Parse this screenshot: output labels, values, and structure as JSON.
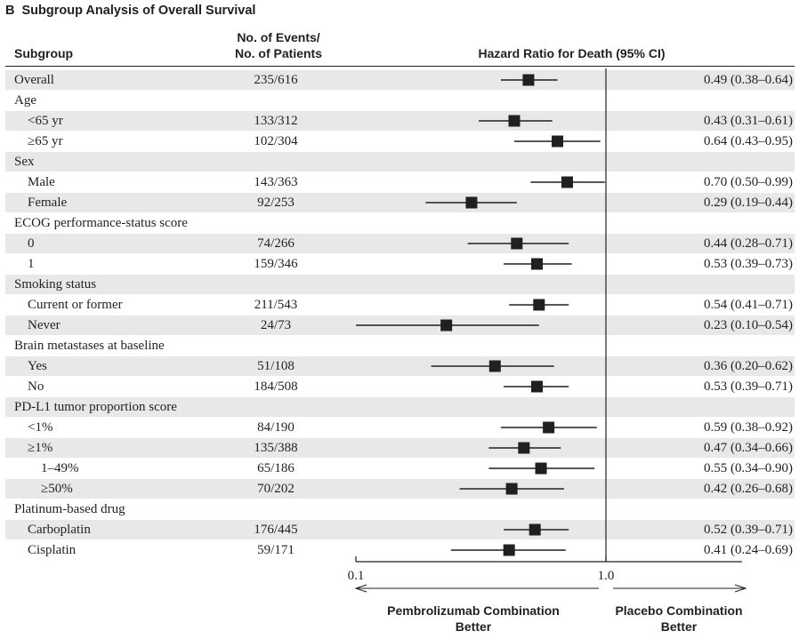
{
  "figure": {
    "panel_letter": "B",
    "title": "Subgroup Analysis of Overall Survival"
  },
  "headers": {
    "subgroup": "Subgroup",
    "events_line1": "No. of Events/",
    "events_line2": "No. of Patients",
    "hazard_ratio": "Hazard Ratio for Death (95% CI)"
  },
  "footer": {
    "left_line1": "Pembrolizumab Combination",
    "left_line2": "Better",
    "right_line1": "Placebo Combination",
    "right_line2": "Better"
  },
  "chart_data": {
    "type": "forest",
    "title": "Subgroup Analysis of Overall Survival",
    "xlabel": "Hazard Ratio for Death (95% CI)",
    "x_scale": "log",
    "xlim": [
      0.1,
      3.5
    ],
    "reference_line": 1.0,
    "x_ticks": [
      {
        "value": 0.1,
        "label": "0.1"
      },
      {
        "value": 1.0,
        "label": "1.0"
      }
    ],
    "rows": [
      {
        "label": "Overall",
        "level": 0,
        "events": "235/616",
        "hr": 0.49,
        "lo": 0.38,
        "hi": 0.64,
        "ci_text": "0.49 (0.38–0.64)",
        "shaded": true
      },
      {
        "label": "Age",
        "level": 0,
        "events": "",
        "hr": null,
        "lo": null,
        "hi": null,
        "ci_text": "",
        "shaded": false
      },
      {
        "label": "<65 yr",
        "level": 1,
        "events": "133/312",
        "hr": 0.43,
        "lo": 0.31,
        "hi": 0.61,
        "ci_text": "0.43 (0.31–0.61)",
        "shaded": true
      },
      {
        "label": "≥65 yr",
        "level": 1,
        "events": "102/304",
        "hr": 0.64,
        "lo": 0.43,
        "hi": 0.95,
        "ci_text": "0.64 (0.43–0.95)",
        "shaded": false
      },
      {
        "label": "Sex",
        "level": 0,
        "events": "",
        "hr": null,
        "lo": null,
        "hi": null,
        "ci_text": "",
        "shaded": true
      },
      {
        "label": "Male",
        "level": 1,
        "events": "143/363",
        "hr": 0.7,
        "lo": 0.5,
        "hi": 0.99,
        "ci_text": "0.70 (0.50–0.99)",
        "shaded": false
      },
      {
        "label": "Female",
        "level": 1,
        "events": "92/253",
        "hr": 0.29,
        "lo": 0.19,
        "hi": 0.44,
        "ci_text": "0.29 (0.19–0.44)",
        "shaded": true
      },
      {
        "label": "ECOG performance-status score",
        "level": 0,
        "events": "",
        "hr": null,
        "lo": null,
        "hi": null,
        "ci_text": "",
        "shaded": false
      },
      {
        "label": "0",
        "level": 1,
        "events": "74/266",
        "hr": 0.44,
        "lo": 0.28,
        "hi": 0.71,
        "ci_text": "0.44 (0.28–0.71)",
        "shaded": true
      },
      {
        "label": "1",
        "level": 1,
        "events": "159/346",
        "hr": 0.53,
        "lo": 0.39,
        "hi": 0.73,
        "ci_text": "0.53 (0.39–0.73)",
        "shaded": false
      },
      {
        "label": "Smoking status",
        "level": 0,
        "events": "",
        "hr": null,
        "lo": null,
        "hi": null,
        "ci_text": "",
        "shaded": true
      },
      {
        "label": "Current or former",
        "level": 1,
        "events": "211/543",
        "hr": 0.54,
        "lo": 0.41,
        "hi": 0.71,
        "ci_text": "0.54 (0.41–0.71)",
        "shaded": false
      },
      {
        "label": "Never",
        "level": 1,
        "events": "24/73",
        "hr": 0.23,
        "lo": 0.1,
        "hi": 0.54,
        "ci_text": "0.23 (0.10–0.54)",
        "shaded": true
      },
      {
        "label": "Brain metastases at baseline",
        "level": 0,
        "events": "",
        "hr": null,
        "lo": null,
        "hi": null,
        "ci_text": "",
        "shaded": false
      },
      {
        "label": "Yes",
        "level": 1,
        "events": "51/108",
        "hr": 0.36,
        "lo": 0.2,
        "hi": 0.62,
        "ci_text": "0.36 (0.20–0.62)",
        "shaded": true
      },
      {
        "label": "No",
        "level": 1,
        "events": "184/508",
        "hr": 0.53,
        "lo": 0.39,
        "hi": 0.71,
        "ci_text": "0.53 (0.39–0.71)",
        "shaded": false
      },
      {
        "label": "PD-L1 tumor proportion score",
        "level": 0,
        "events": "",
        "hr": null,
        "lo": null,
        "hi": null,
        "ci_text": "",
        "shaded": true
      },
      {
        "label": "<1%",
        "level": 1,
        "events": "84/190",
        "hr": 0.59,
        "lo": 0.38,
        "hi": 0.92,
        "ci_text": "0.59 (0.38–0.92)",
        "shaded": false
      },
      {
        "label": "≥1%",
        "level": 1,
        "events": "135/388",
        "hr": 0.47,
        "lo": 0.34,
        "hi": 0.66,
        "ci_text": "0.47 (0.34–0.66)",
        "shaded": true
      },
      {
        "label": "1–49%",
        "level": 2,
        "events": "65/186",
        "hr": 0.55,
        "lo": 0.34,
        "hi": 0.9,
        "ci_text": "0.55 (0.34–0.90)",
        "shaded": false
      },
      {
        "label": "≥50%",
        "level": 2,
        "events": "70/202",
        "hr": 0.42,
        "lo": 0.26,
        "hi": 0.68,
        "ci_text": "0.42 (0.26–0.68)",
        "shaded": true
      },
      {
        "label": "Platinum-based drug",
        "level": 0,
        "events": "",
        "hr": null,
        "lo": null,
        "hi": null,
        "ci_text": "",
        "shaded": false
      },
      {
        "label": "Carboplatin",
        "level": 1,
        "events": "176/445",
        "hr": 0.52,
        "lo": 0.39,
        "hi": 0.71,
        "ci_text": "0.52 (0.39–0.71)",
        "shaded": true
      },
      {
        "label": "Cisplatin",
        "level": 1,
        "events": "59/171",
        "hr": 0.41,
        "lo": 0.24,
        "hi": 0.69,
        "ci_text": "0.41 (0.24–0.69)",
        "shaded": false
      }
    ]
  }
}
